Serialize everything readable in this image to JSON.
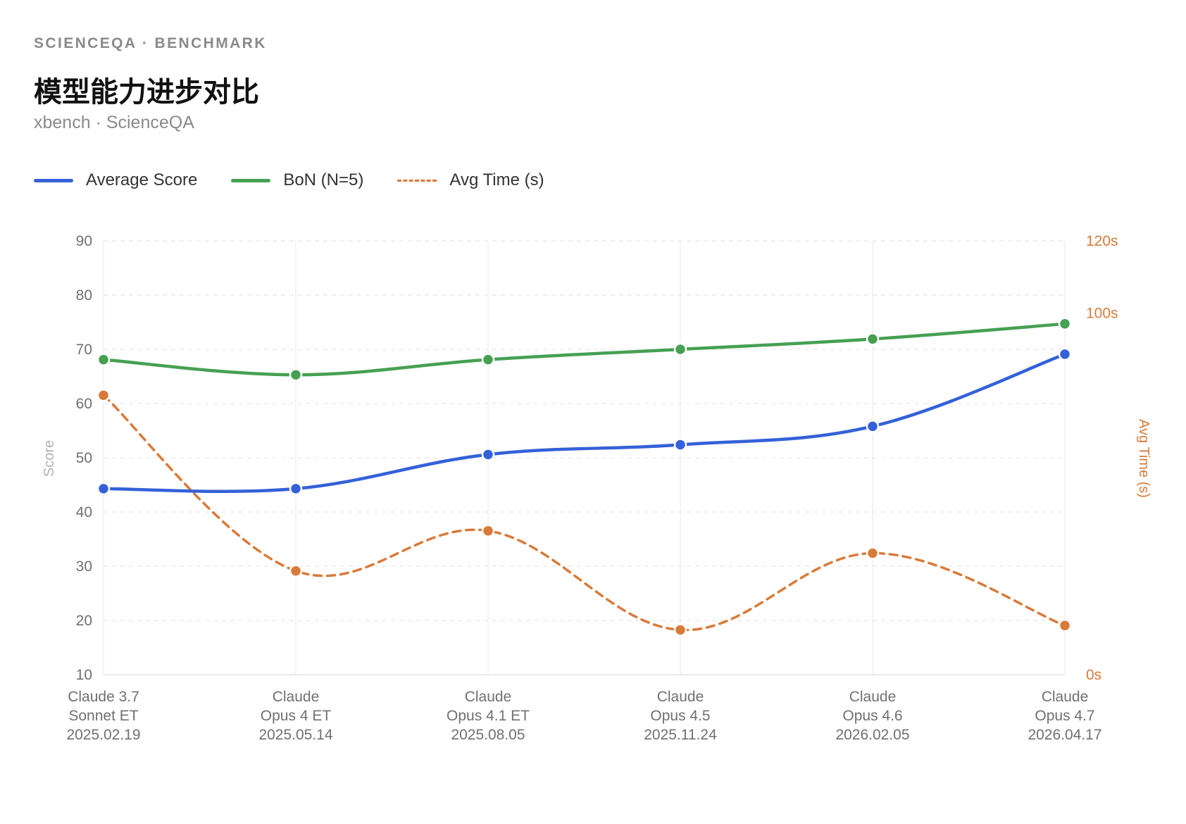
{
  "header": {
    "eyebrow": "SCIENCEQA · BENCHMARK",
    "title": "模型能力进步对比",
    "subtitle": "xbench · ScienceQA"
  },
  "legend": [
    {
      "label": "Average Score",
      "color": "#3461d9",
      "style": "solid"
    },
    {
      "label": "BoN (N=5)",
      "color": "#46a052",
      "style": "solid"
    },
    {
      "label": "Avg Time (s)",
      "color": "#d97a3a",
      "style": "dashed"
    }
  ],
  "chart_data": {
    "type": "line",
    "categories": [
      [
        "Claude 3.7",
        "Sonnet ET",
        "2025.02.19"
      ],
      [
        "Claude",
        "Opus 4 ET",
        "2025.05.14"
      ],
      [
        "Claude",
        "Opus 4.1 ET",
        "2025.08.05"
      ],
      [
        "Claude",
        "Opus 4.5",
        "2025.11.24"
      ],
      [
        "Claude",
        "Opus 4.6",
        "2026.02.05"
      ],
      [
        "Claude",
        "Opus 4.7",
        "2026.04.17"
      ]
    ],
    "ylabel": "Score",
    "ylim": [
      10,
      90
    ],
    "yticks": [
      10,
      20,
      30,
      40,
      50,
      60,
      70,
      80,
      90
    ],
    "y2label": "Avg Time (s)",
    "y2lim": [
      0,
      120
    ],
    "y2ticks": [
      {
        "value": 0,
        "label": "0s"
      },
      {
        "value": 100,
        "label": "100s"
      },
      {
        "value": 120,
        "label": "120s"
      }
    ],
    "grid": true,
    "legend_position": "top-left",
    "series": [
      {
        "name": "Average Score",
        "axis": "left",
        "color": "#3461d9",
        "style": "solid",
        "values": [
          44.3,
          44.3,
          50.6,
          52.4,
          55.8,
          69.1
        ]
      },
      {
        "name": "BoN (N=5)",
        "axis": "left",
        "color": "#46a052",
        "style": "solid",
        "values": [
          68.1,
          65.3,
          68.1,
          70.0,
          71.9,
          74.7
        ]
      },
      {
        "name": "Avg Time (s)",
        "axis": "right",
        "color": "#d97a3a",
        "style": "dashed",
        "values": [
          77.3,
          28.7,
          39.8,
          12.4,
          33.6,
          13.6
        ]
      }
    ]
  }
}
